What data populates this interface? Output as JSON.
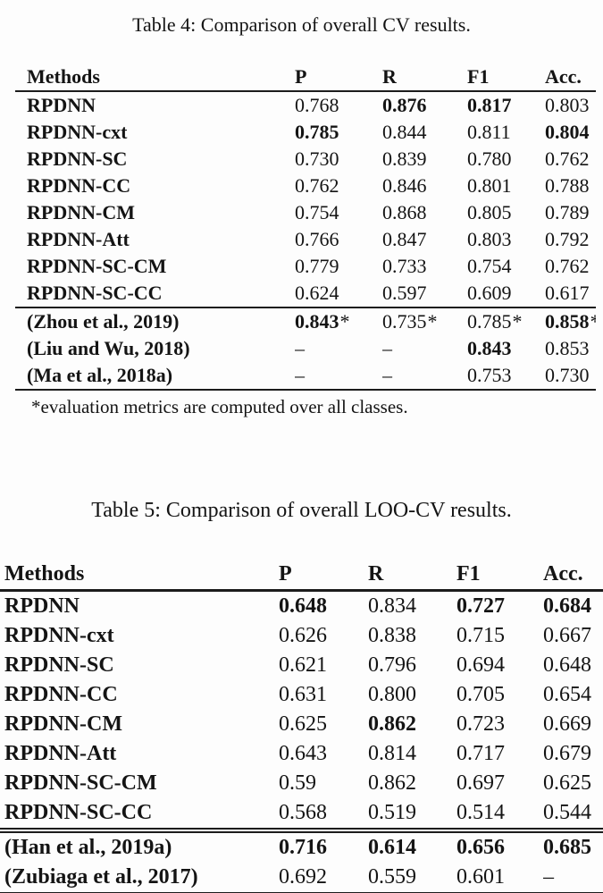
{
  "page": {
    "background_color": "#fdfdfd",
    "text_color": "#141414",
    "rule_color": "#1c1c1c"
  },
  "table4": {
    "title": "Table 4: Comparison of overall CV results.",
    "columns": [
      "Methods",
      "P",
      "R",
      "F1",
      "Acc."
    ],
    "rows": [
      {
        "method": "RPDNN",
        "cells": [
          {
            "t": "0.768"
          },
          {
            "t": "0.876",
            "b": true
          },
          {
            "t": "0.817",
            "b": true
          },
          {
            "t": "0.803"
          }
        ]
      },
      {
        "method": "RPDNN-cxt",
        "cells": [
          {
            "t": "0.785",
            "b": true
          },
          {
            "t": "0.844"
          },
          {
            "t": "0.811"
          },
          {
            "t": "0.804",
            "b": true
          }
        ]
      },
      {
        "method": "RPDNN-SC",
        "cells": [
          {
            "t": "0.730"
          },
          {
            "t": "0.839"
          },
          {
            "t": "0.780"
          },
          {
            "t": "0.762"
          }
        ]
      },
      {
        "method": "RPDNN-CC",
        "cells": [
          {
            "t": "0.762"
          },
          {
            "t": "0.846"
          },
          {
            "t": "0.801"
          },
          {
            "t": "0.788"
          }
        ]
      },
      {
        "method": "RPDNN-CM",
        "cells": [
          {
            "t": "0.754"
          },
          {
            "t": "0.868"
          },
          {
            "t": "0.805"
          },
          {
            "t": "0.789"
          }
        ]
      },
      {
        "method": "RPDNN-Att",
        "cells": [
          {
            "t": "0.766"
          },
          {
            "t": "0.847"
          },
          {
            "t": "0.803"
          },
          {
            "t": "0.792"
          }
        ]
      },
      {
        "method": "RPDNN-SC-CM",
        "cells": [
          {
            "t": "0.779"
          },
          {
            "t": "0.733"
          },
          {
            "t": "0.754"
          },
          {
            "t": "0.762"
          }
        ]
      },
      {
        "method": "RPDNN-SC-CC",
        "cells": [
          {
            "t": "0.624"
          },
          {
            "t": "0.597"
          },
          {
            "t": "0.609"
          },
          {
            "t": "0.617"
          }
        ]
      }
    ],
    "baseline_rows": [
      {
        "method": "(Zhou et al., 2019)",
        "cells": [
          {
            "t": "0.843",
            "b": true,
            "s": "*"
          },
          {
            "t": "0.735",
            "s": "*"
          },
          {
            "t": "0.785",
            "s": "*"
          },
          {
            "t": "0.858",
            "b": true,
            "s": "*"
          }
        ]
      },
      {
        "method": "(Liu and Wu, 2018)",
        "cells": [
          {
            "t": "–"
          },
          {
            "t": "–"
          },
          {
            "t": "0.843",
            "b": true
          },
          {
            "t": "0.853"
          }
        ]
      },
      {
        "method": "(Ma et al., 2018a)",
        "cells": [
          {
            "t": "–"
          },
          {
            "t": "–"
          },
          {
            "t": "0.753"
          },
          {
            "t": "0.730"
          }
        ]
      }
    ],
    "footnote": "*evaluation metrics are computed over all classes."
  },
  "table5": {
    "title": "Table 5: Comparison of overall LOO-CV results.",
    "columns": [
      "Methods",
      "P",
      "R",
      "F1",
      "Acc."
    ],
    "rows": [
      {
        "method": "RPDNN",
        "cells": [
          {
            "t": "0.648",
            "b": true
          },
          {
            "t": "0.834"
          },
          {
            "t": "0.727",
            "b": true
          },
          {
            "t": "0.684",
            "b": true
          }
        ]
      },
      {
        "method": "RPDNN-cxt",
        "cells": [
          {
            "t": "0.626"
          },
          {
            "t": "0.838"
          },
          {
            "t": "0.715"
          },
          {
            "t": "0.667"
          }
        ]
      },
      {
        "method": "RPDNN-SC",
        "cells": [
          {
            "t": "0.621"
          },
          {
            "t": "0.796"
          },
          {
            "t": "0.694"
          },
          {
            "t": "0.648"
          }
        ]
      },
      {
        "method": "RPDNN-CC",
        "cells": [
          {
            "t": "0.631"
          },
          {
            "t": "0.800"
          },
          {
            "t": "0.705"
          },
          {
            "t": "0.654"
          }
        ]
      },
      {
        "method": "RPDNN-CM",
        "cells": [
          {
            "t": "0.625"
          },
          {
            "t": "0.862",
            "b": true
          },
          {
            "t": "0.723"
          },
          {
            "t": "0.669"
          }
        ]
      },
      {
        "method": "RPDNN-Att",
        "cells": [
          {
            "t": "0.643"
          },
          {
            "t": "0.814"
          },
          {
            "t": "0.717"
          },
          {
            "t": "0.679"
          }
        ]
      },
      {
        "method": "RPDNN-SC-CM",
        "cells": [
          {
            "t": "0.59"
          },
          {
            "t": "0.862"
          },
          {
            "t": "0.697"
          },
          {
            "t": "0.625"
          }
        ]
      },
      {
        "method": "RPDNN-SC-CC",
        "cells": [
          {
            "t": "0.568"
          },
          {
            "t": "0.519"
          },
          {
            "t": "0.514"
          },
          {
            "t": "0.544"
          }
        ]
      }
    ],
    "baseline_rows": [
      {
        "method": "(Han et al., 2019a)",
        "cells": [
          {
            "t": "0.716",
            "b": true
          },
          {
            "t": "0.614",
            "b": true
          },
          {
            "t": "0.656",
            "b": true
          },
          {
            "t": "0.685",
            "b": true
          }
        ]
      },
      {
        "method": "(Zubiaga et al., 2017)",
        "cells": [
          {
            "t": "0.692"
          },
          {
            "t": "0.559"
          },
          {
            "t": "0.601"
          },
          {
            "t": "–"
          }
        ]
      }
    ]
  }
}
